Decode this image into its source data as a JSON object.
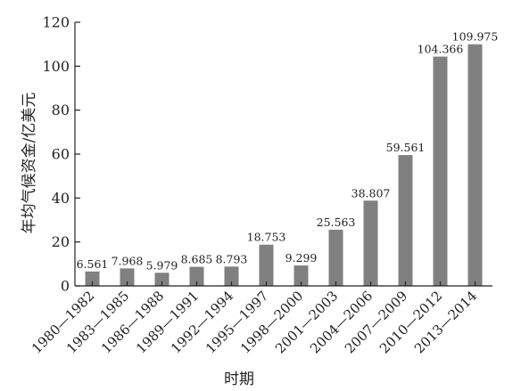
{
  "chart_data": {
    "type": "bar",
    "xlabel": "时期",
    "ylabel": "年均气候资金/亿美元",
    "ylim": [
      0,
      120
    ],
    "yticks": [
      0,
      20,
      40,
      60,
      80,
      100,
      120
    ],
    "grid": false,
    "legend": "none",
    "bar_color": "#808080",
    "categories": [
      "1980—1982",
      "1983—1985",
      "1986—1988",
      "1989—1991",
      "1992—1994",
      "1995—1997",
      "1998—2000",
      "2001—2003",
      "2004—2006",
      "2007—2009",
      "2010—2012",
      "2013—2014"
    ],
    "values": [
      6.561,
      7.968,
      5.979,
      8.685,
      8.793,
      18.753,
      9.299,
      25.563,
      38.807,
      59.561,
      104.366,
      109.975
    ],
    "value_labels": [
      "6.561",
      "7.968",
      "5.979",
      "8.685",
      "8.793",
      "18.753",
      "9.299",
      "25.563",
      "38.807",
      "59.561",
      "104.366",
      "109.975"
    ]
  }
}
